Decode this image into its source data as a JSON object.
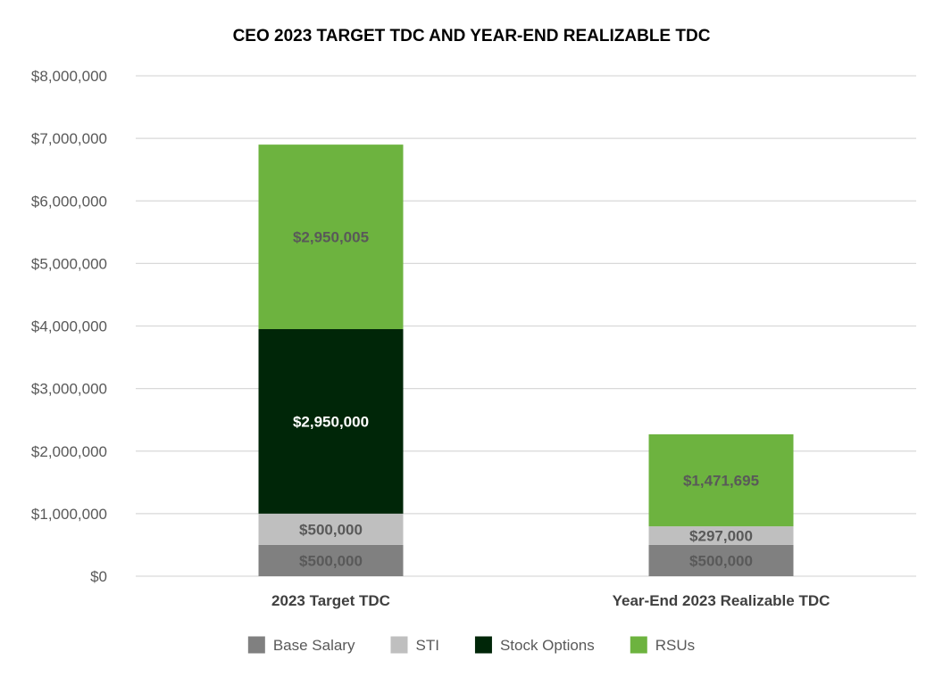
{
  "chart_data": {
    "type": "bar",
    "stacked": true,
    "title": "CEO 2023 TARGET TDC AND YEAR-END REALIZABLE TDC",
    "xlabel": "",
    "ylabel": "",
    "ylim": [
      0,
      8000000
    ],
    "yticks": [
      0,
      1000000,
      2000000,
      3000000,
      4000000,
      5000000,
      6000000,
      7000000,
      8000000
    ],
    "ytick_labels": [
      "$0",
      "$1,000,000",
      "$2,000,000",
      "$3,000,000",
      "$4,000,000",
      "$5,000,000",
      "$6,000,000",
      "$7,000,000",
      "$8,000,000"
    ],
    "grid": true,
    "legend_position": "bottom",
    "categories": [
      "2023 Target TDC",
      "Year-End 2023 Realizable TDC"
    ],
    "series": [
      {
        "name": "Base Salary",
        "color": "#808080",
        "label_color": "#595959",
        "values": [
          500000,
          500000
        ],
        "labels": [
          "$500,000",
          "$500,000"
        ]
      },
      {
        "name": "STI",
        "color": "#bfbfbf",
        "label_color": "#595959",
        "values": [
          500000,
          297000
        ],
        "labels": [
          "$500,000",
          "$297,000"
        ]
      },
      {
        "name": "Stock Options",
        "color": "#002608",
        "label_color": "#ffffff",
        "values": [
          2950000,
          0
        ],
        "labels": [
          "$2,950,000",
          ""
        ]
      },
      {
        "name": "RSUs",
        "color": "#6db33f",
        "label_color": "#595959",
        "values": [
          2950005,
          1471695
        ],
        "labels": [
          "$2,950,005",
          "$1,471,695"
        ]
      }
    ]
  }
}
